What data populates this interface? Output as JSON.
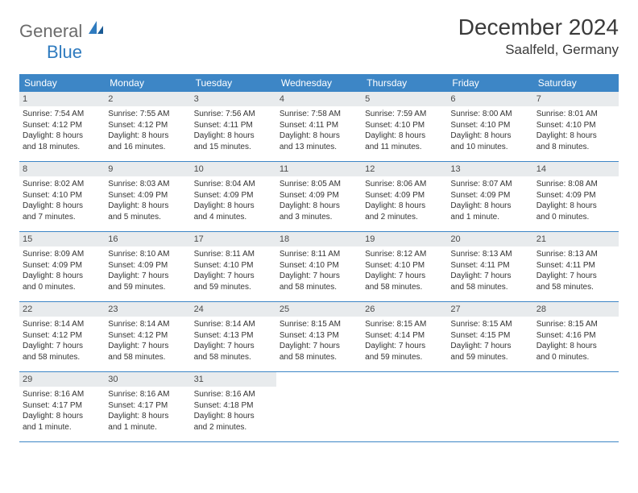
{
  "logo": {
    "text1": "General",
    "text2": "Blue"
  },
  "title": "December 2024",
  "location": "Saalfeld, Germany",
  "colors": {
    "header_bg": "#3d86c6",
    "header_text": "#ffffff",
    "daynum_bg": "#e8ebed",
    "rule": "#3d86c6",
    "body_text": "#333333"
  },
  "daynames": [
    "Sunday",
    "Monday",
    "Tuesday",
    "Wednesday",
    "Thursday",
    "Friday",
    "Saturday"
  ],
  "weeks": [
    [
      {
        "n": "1",
        "sr": "Sunrise: 7:54 AM",
        "ss": "Sunset: 4:12 PM",
        "d1": "Daylight: 8 hours",
        "d2": "and 18 minutes."
      },
      {
        "n": "2",
        "sr": "Sunrise: 7:55 AM",
        "ss": "Sunset: 4:12 PM",
        "d1": "Daylight: 8 hours",
        "d2": "and 16 minutes."
      },
      {
        "n": "3",
        "sr": "Sunrise: 7:56 AM",
        "ss": "Sunset: 4:11 PM",
        "d1": "Daylight: 8 hours",
        "d2": "and 15 minutes."
      },
      {
        "n": "4",
        "sr": "Sunrise: 7:58 AM",
        "ss": "Sunset: 4:11 PM",
        "d1": "Daylight: 8 hours",
        "d2": "and 13 minutes."
      },
      {
        "n": "5",
        "sr": "Sunrise: 7:59 AM",
        "ss": "Sunset: 4:10 PM",
        "d1": "Daylight: 8 hours",
        "d2": "and 11 minutes."
      },
      {
        "n": "6",
        "sr": "Sunrise: 8:00 AM",
        "ss": "Sunset: 4:10 PM",
        "d1": "Daylight: 8 hours",
        "d2": "and 10 minutes."
      },
      {
        "n": "7",
        "sr": "Sunrise: 8:01 AM",
        "ss": "Sunset: 4:10 PM",
        "d1": "Daylight: 8 hours",
        "d2": "and 8 minutes."
      }
    ],
    [
      {
        "n": "8",
        "sr": "Sunrise: 8:02 AM",
        "ss": "Sunset: 4:10 PM",
        "d1": "Daylight: 8 hours",
        "d2": "and 7 minutes."
      },
      {
        "n": "9",
        "sr": "Sunrise: 8:03 AM",
        "ss": "Sunset: 4:09 PM",
        "d1": "Daylight: 8 hours",
        "d2": "and 5 minutes."
      },
      {
        "n": "10",
        "sr": "Sunrise: 8:04 AM",
        "ss": "Sunset: 4:09 PM",
        "d1": "Daylight: 8 hours",
        "d2": "and 4 minutes."
      },
      {
        "n": "11",
        "sr": "Sunrise: 8:05 AM",
        "ss": "Sunset: 4:09 PM",
        "d1": "Daylight: 8 hours",
        "d2": "and 3 minutes."
      },
      {
        "n": "12",
        "sr": "Sunrise: 8:06 AM",
        "ss": "Sunset: 4:09 PM",
        "d1": "Daylight: 8 hours",
        "d2": "and 2 minutes."
      },
      {
        "n": "13",
        "sr": "Sunrise: 8:07 AM",
        "ss": "Sunset: 4:09 PM",
        "d1": "Daylight: 8 hours",
        "d2": "and 1 minute."
      },
      {
        "n": "14",
        "sr": "Sunrise: 8:08 AM",
        "ss": "Sunset: 4:09 PM",
        "d1": "Daylight: 8 hours",
        "d2": "and 0 minutes."
      }
    ],
    [
      {
        "n": "15",
        "sr": "Sunrise: 8:09 AM",
        "ss": "Sunset: 4:09 PM",
        "d1": "Daylight: 8 hours",
        "d2": "and 0 minutes."
      },
      {
        "n": "16",
        "sr": "Sunrise: 8:10 AM",
        "ss": "Sunset: 4:09 PM",
        "d1": "Daylight: 7 hours",
        "d2": "and 59 minutes."
      },
      {
        "n": "17",
        "sr": "Sunrise: 8:11 AM",
        "ss": "Sunset: 4:10 PM",
        "d1": "Daylight: 7 hours",
        "d2": "and 59 minutes."
      },
      {
        "n": "18",
        "sr": "Sunrise: 8:11 AM",
        "ss": "Sunset: 4:10 PM",
        "d1": "Daylight: 7 hours",
        "d2": "and 58 minutes."
      },
      {
        "n": "19",
        "sr": "Sunrise: 8:12 AM",
        "ss": "Sunset: 4:10 PM",
        "d1": "Daylight: 7 hours",
        "d2": "and 58 minutes."
      },
      {
        "n": "20",
        "sr": "Sunrise: 8:13 AM",
        "ss": "Sunset: 4:11 PM",
        "d1": "Daylight: 7 hours",
        "d2": "and 58 minutes."
      },
      {
        "n": "21",
        "sr": "Sunrise: 8:13 AM",
        "ss": "Sunset: 4:11 PM",
        "d1": "Daylight: 7 hours",
        "d2": "and 58 minutes."
      }
    ],
    [
      {
        "n": "22",
        "sr": "Sunrise: 8:14 AM",
        "ss": "Sunset: 4:12 PM",
        "d1": "Daylight: 7 hours",
        "d2": "and 58 minutes."
      },
      {
        "n": "23",
        "sr": "Sunrise: 8:14 AM",
        "ss": "Sunset: 4:12 PM",
        "d1": "Daylight: 7 hours",
        "d2": "and 58 minutes."
      },
      {
        "n": "24",
        "sr": "Sunrise: 8:14 AM",
        "ss": "Sunset: 4:13 PM",
        "d1": "Daylight: 7 hours",
        "d2": "and 58 minutes."
      },
      {
        "n": "25",
        "sr": "Sunrise: 8:15 AM",
        "ss": "Sunset: 4:13 PM",
        "d1": "Daylight: 7 hours",
        "d2": "and 58 minutes."
      },
      {
        "n": "26",
        "sr": "Sunrise: 8:15 AM",
        "ss": "Sunset: 4:14 PM",
        "d1": "Daylight: 7 hours",
        "d2": "and 59 minutes."
      },
      {
        "n": "27",
        "sr": "Sunrise: 8:15 AM",
        "ss": "Sunset: 4:15 PM",
        "d1": "Daylight: 7 hours",
        "d2": "and 59 minutes."
      },
      {
        "n": "28",
        "sr": "Sunrise: 8:15 AM",
        "ss": "Sunset: 4:16 PM",
        "d1": "Daylight: 8 hours",
        "d2": "and 0 minutes."
      }
    ],
    [
      {
        "n": "29",
        "sr": "Sunrise: 8:16 AM",
        "ss": "Sunset: 4:17 PM",
        "d1": "Daylight: 8 hours",
        "d2": "and 1 minute."
      },
      {
        "n": "30",
        "sr": "Sunrise: 8:16 AM",
        "ss": "Sunset: 4:17 PM",
        "d1": "Daylight: 8 hours",
        "d2": "and 1 minute."
      },
      {
        "n": "31",
        "sr": "Sunrise: 8:16 AM",
        "ss": "Sunset: 4:18 PM",
        "d1": "Daylight: 8 hours",
        "d2": "and 2 minutes."
      },
      {
        "empty": true
      },
      {
        "empty": true
      },
      {
        "empty": true
      },
      {
        "empty": true
      }
    ]
  ]
}
